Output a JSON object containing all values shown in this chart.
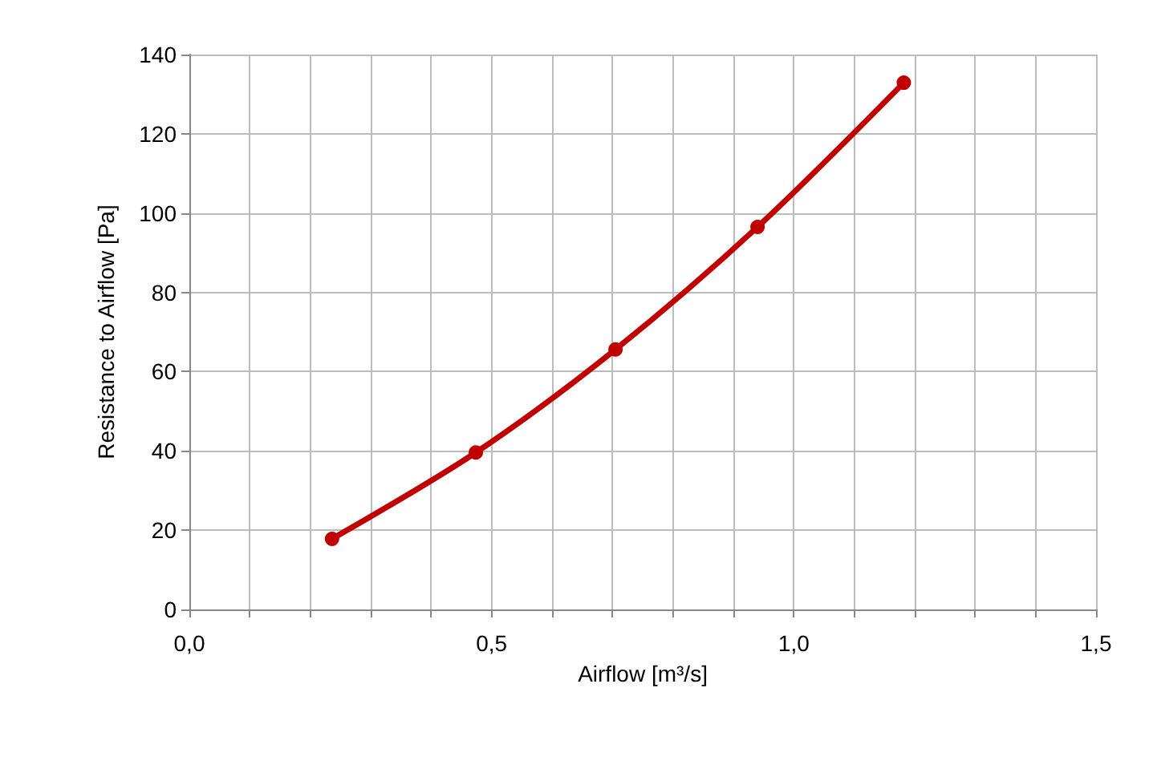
{
  "chart_data": {
    "type": "line",
    "xlabel": "Airflow [m³/s]",
    "ylabel": "Resistance to Airflow [Pa]",
    "x": [
      0.236,
      0.474,
      0.705,
      0.94,
      1.182
    ],
    "series": [
      {
        "color": "#c00000",
        "values": [
          17.8,
          39.6,
          65.6,
          96.5,
          132.9
        ]
      }
    ],
    "xlim": [
      0,
      1.5
    ],
    "xticks": [
      {
        "value": 0,
        "label": "0,0"
      },
      {
        "value": 0.1,
        "label": null
      },
      {
        "value": 0.2,
        "label": null
      },
      {
        "value": 0.3,
        "label": null
      },
      {
        "value": 0.4,
        "label": null
      },
      {
        "value": 0.5,
        "label": "0,5"
      },
      {
        "value": 0.6,
        "label": null
      },
      {
        "value": 0.7,
        "label": null
      },
      {
        "value": 0.8,
        "label": null
      },
      {
        "value": 0.9,
        "label": null
      },
      {
        "value": 1,
        "label": "1,0"
      },
      {
        "value": 1.1,
        "label": null
      },
      {
        "value": 1.2,
        "label": null
      },
      {
        "value": 1.3,
        "label": null
      },
      {
        "value": 1.4,
        "label": null
      },
      {
        "value": 1.5,
        "label": "1,5"
      }
    ],
    "ylim": [
      0,
      140
    ],
    "yticks": [
      0,
      20,
      40,
      60,
      80,
      100,
      120,
      140
    ],
    "grid": true,
    "marker": "circle",
    "line_style": "solid"
  }
}
